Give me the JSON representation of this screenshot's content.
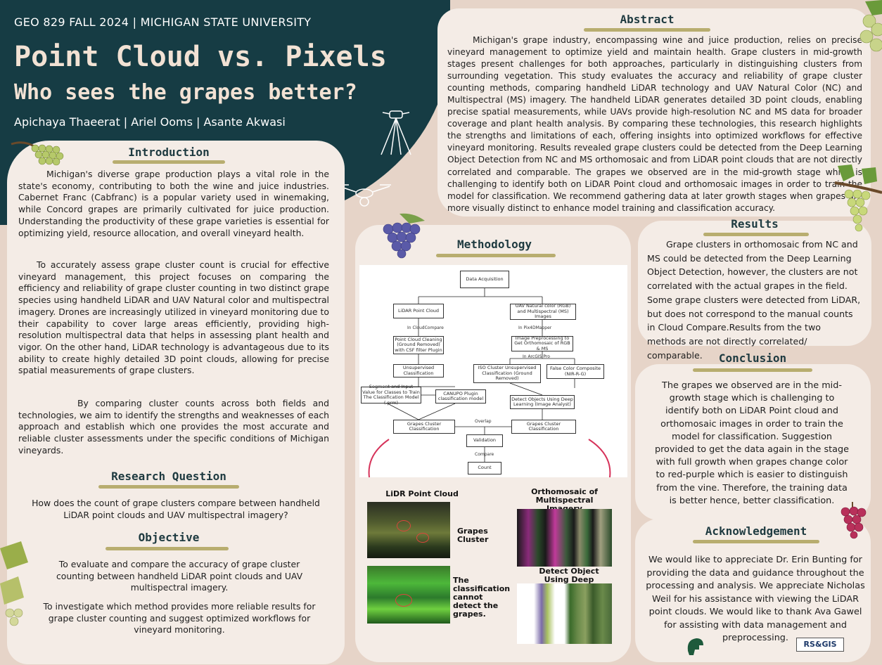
{
  "header": {
    "course": "GEO 829 FALL 2024 | MICHIGAN STATE UNIVERSITY",
    "title_line1": "Point Cloud vs. Pixels",
    "title_line2": "Who sees the grapes better?",
    "authors": "Apichaya Thaeerat | Ariel Ooms | Asante Akwasi"
  },
  "introduction": {
    "heading": "Introduction",
    "p1": "Michigan's diverse grape production plays a vital role in the state's economy, contributing to both the wine and juice industries. Cabernet Franc (Cabfranc) is a popular variety used in winemaking, while Concord grapes are primarily cultivated for juice production. Understanding the productivity of these grape varieties is essential for optimizing yield, resource allocation, and overall vineyard health.",
    "p2": "To accurately assess grape cluster count is crucial for effective vineyard management, this project focuses on comparing the efficiency and reliability of grape cluster counting in two distinct grape species using handheld LiDAR and UAV Natural color and multispectral imagery. Drones are increasingly utilized in vineyard monitoring due to their capability to cover large areas efficiently, providing high-resolution multispectral data that helps in assessing plant health and vigor. On the other hand, LiDAR technology is advantageous due to its ability to create highly detailed 3D point clouds, allowing for precise spatial measurements of grape clusters.",
    "p3": "By comparing cluster counts across both fields and technologies, we aim to identify the strengths and weaknesses of each approach and establish which one provides the most accurate and reliable cluster assessments under the specific conditions of Michigan vineyards."
  },
  "research_question": {
    "heading": "Research Question",
    "text": "How does the count of grape clusters compare between handheld LiDAR point clouds and UAV multispectral imagery?"
  },
  "objective": {
    "heading": "Objective",
    "p1": "To evaluate and compare the accuracy of grape cluster counting between handheld LiDAR point clouds and UAV multispectral imagery.",
    "p2": "To investigate which method provides more reliable results for grape cluster counting and suggest optimized workflows for vineyard monitoring."
  },
  "abstract": {
    "heading": "Abstract",
    "text": "Michigan's grape industry, encompassing wine and juice production, relies on precise vineyard management to optimize yield and maintain health. Grape clusters in mid-growth stages present challenges for both approaches, particularly in distinguishing clusters from surrounding vegetation. This study evaluates the accuracy and reliability of grape cluster counting methods, comparing handheld LiDAR technology and UAV Natural Color (NC) and Multispectral (MS) imagery. The handheld LiDAR generates detailed 3D point clouds, enabling precise spatial measurements, while UAVs provide high-resolution NC and MS data for broader coverage and plant health analysis. By comparing these technologies, this research highlights the strengths and limitations of each, offering insights into optimized workflows for effective vineyard monitoring. Results revealed grape clusters could be detected from the Deep Learning Object Detection from NC and MS orthomosaic and from LiDAR point clouds that are not directly correlated and comparable. The grapes we observed are in the mid-growth stage which is challenging to identify both on LiDAR Point cloud and orthomosaic images in order to train the model for classification. We recommend gathering data at later growth stages when grapes are more visually distinct to enhance model training and classification accuracy."
  },
  "methodology": {
    "heading": "Methodology",
    "flowchart": {
      "data_acquisition": "Data Acquisition",
      "lidar_point_cloud": "LiDAR Point Cloud",
      "uav_images": "UAV Natural color (RGB) and Multispectral (MS) Images",
      "in_cloudcompare": "In CloudCompare",
      "in_pix4dmapper": "In Pix4DMapper",
      "point_cloud_cleaning": "Point Cloud Cleaning (Ground Removed) with CSF filter Plugin",
      "image_preprocessing": "Image Preprocessing to Get Orthomosaic of RGB & MS",
      "in_arcgis_pro": "In ArcGIS Pro",
      "unsupervised_classification": "Unsupervised Classification",
      "iso_cluster": "ISO Cluster Unsupervised Classification (Ground Removed)",
      "false_color": "False Color Composite (NIR-R-G)",
      "segment_input": "Segment and Input Value for Classes to Train The Classification Model (.prm)",
      "canupo": "CANUPO Plugin classification model",
      "detect_objects": "Detect Objects Using Deep Learning (Image Analyst)",
      "grapes_cluster_left": "Grapes Cluster Classification",
      "overlap": "Overlap",
      "grapes_cluster_right": "Grapes Cluster Classification",
      "validation": "Validation",
      "compare": "Compare",
      "count": "Count"
    },
    "lidar_caption": "LiDR Point Cloud",
    "grapes_cluster_label": "Grapes Cluster",
    "classification_note": "The classification cannot detect the grapes.",
    "ortho_caption": "Orthomosaic of Multispectral Imagery",
    "detect_caption": "Detect Object Using Deep Learning"
  },
  "results": {
    "heading": "Results",
    "text": "Grape clusters in orthomosaic from NC and MS could be detected from the Deep Learning Object Detection, however, the clusters are not correlated with the actual grapes in the field. Some grape clusters were detected from LiDAR, but does not correspond to the manual counts in Cloud Compare.Results from the two methods are not directly correlated/ comparable."
  },
  "conclusion": {
    "heading": "Conclusion",
    "text": "The grapes we observed are in the mid-growth stage which is challenging to identify both on LiDAR Point cloud and orthomosaic images in order to train the model for classification. Suggestion provided to get the data again in the stage with full growth when grapes change color to red-purple which is easier to distinguish from the vine. Therefore, the training data is better hence, better classification."
  },
  "acknowledgement": {
    "heading": "Acknowledgement",
    "text": "We would like to appreciate Dr. Erin Bunting for providing the data and guidance throughout the processing and analysis. We appreciate Nicholas Weil for his assistance with viewing the LiDAR point clouds. We would like to thank Ava Gawel for assisting with data management and preprocessing."
  },
  "logos": {
    "rsgis": "RS&GIS"
  },
  "colors": {
    "header_bg": "#163c44",
    "panel_bg": "#f4ece6",
    "page_bg": "#e6d4c8",
    "accent_underline": "#b8ad6f",
    "title_text": "#f2e2d4"
  }
}
